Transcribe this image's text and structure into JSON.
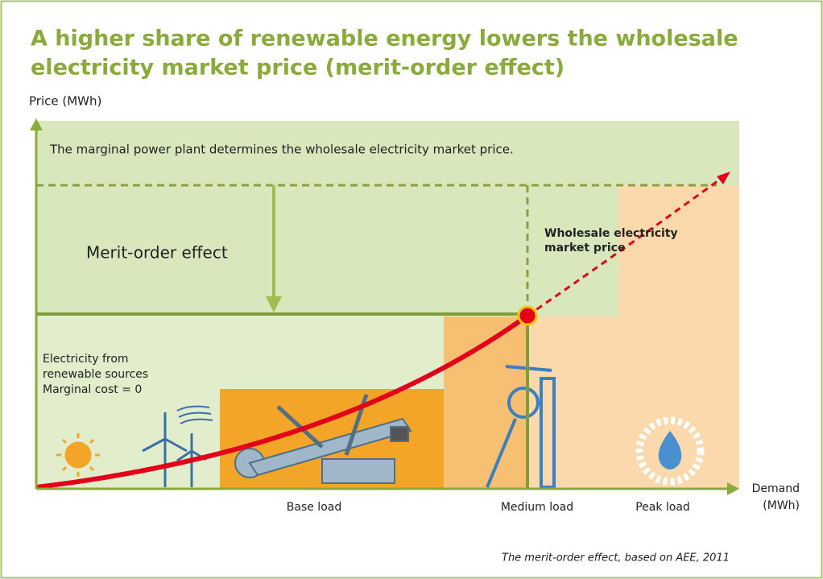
{
  "header": {
    "title_lines": [
      "A higher share of renewable energy lowers the wholesale",
      "electricity market price (merit-order effect)"
    ]
  },
  "diagram": {
    "y_axis_label": "Price (MWh)",
    "note": "The marginal power plant determines the wholesale electricity market price.",
    "effect_label": "Merit-order effect",
    "price_label_lines": [
      "Wholesale electricity",
      "market price"
    ],
    "renewables_label_lines": [
      "Electricity from",
      "renewable sources",
      "Marginal cost = 0"
    ],
    "x_axis_label_lines": [
      "Demand",
      "(MWh)"
    ],
    "load_categories": [
      "Base load",
      "Medium load",
      "Peak load"
    ]
  },
  "caption": "The merit-order effect, based on AEE, 2011"
}
